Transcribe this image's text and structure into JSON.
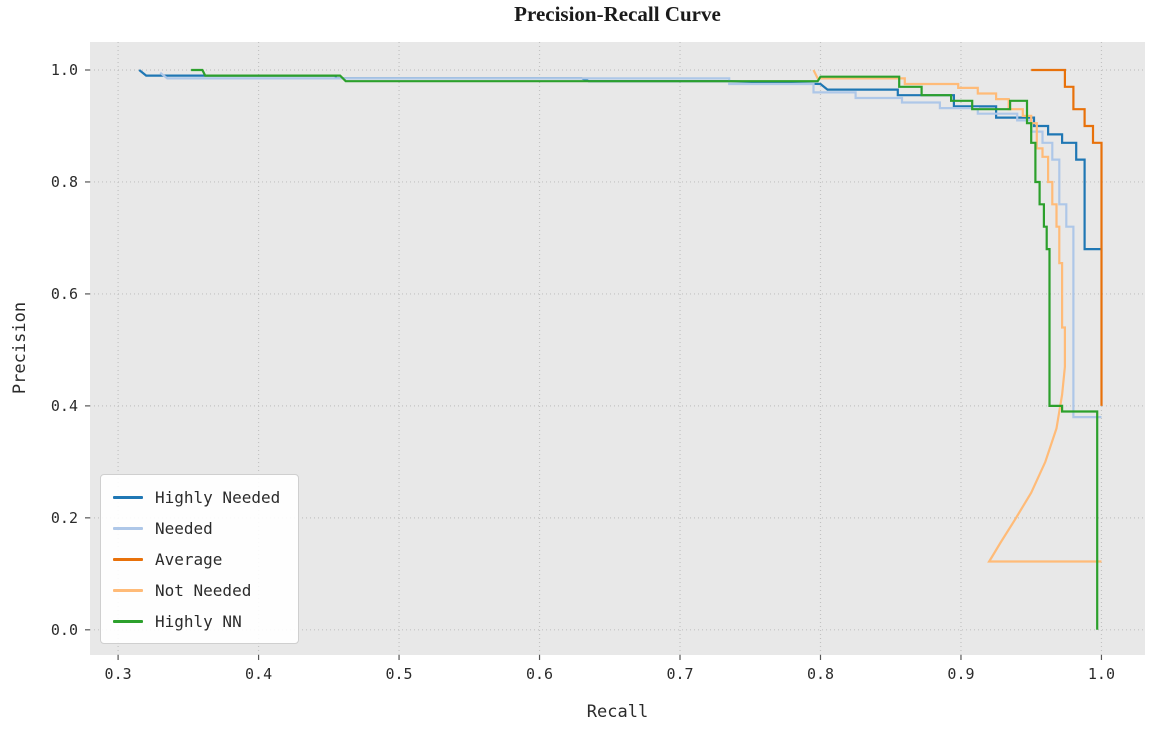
{
  "chart_data": {
    "type": "line",
    "subtype": "precision-recall-step-curves",
    "title": "Precision-Recall Curve",
    "xlabel": "Recall",
    "ylabel": "Precision",
    "xlim": [
      0.28,
      1.031
    ],
    "ylim": [
      -0.045,
      1.05
    ],
    "x_ticks": [
      0.3,
      0.4,
      0.5,
      0.6,
      0.7,
      0.8,
      0.9,
      1.0
    ],
    "y_ticks": [
      0.0,
      0.2,
      0.4,
      0.6,
      0.8,
      1.0
    ],
    "grid": "dotted",
    "plot_background": "#e8e8e8",
    "grid_color": "#c2c2c2",
    "legend_position": "lower left",
    "series": [
      {
        "name": "Highly Needed",
        "color": "#1f77b4",
        "points": [
          [
            0.315,
            1.0
          ],
          [
            0.32,
            0.99
          ],
          [
            0.455,
            0.99
          ],
          [
            0.455,
            0.985
          ],
          [
            0.63,
            0.985
          ],
          [
            0.635,
            0.98
          ],
          [
            0.735,
            0.98
          ],
          [
            0.8,
            0.975
          ],
          [
            0.805,
            0.965
          ],
          [
            0.855,
            0.965
          ],
          [
            0.855,
            0.955
          ],
          [
            0.895,
            0.955
          ],
          [
            0.895,
            0.935
          ],
          [
            0.925,
            0.935
          ],
          [
            0.925,
            0.915
          ],
          [
            0.952,
            0.915
          ],
          [
            0.952,
            0.9
          ],
          [
            0.962,
            0.9
          ],
          [
            0.962,
            0.885
          ],
          [
            0.972,
            0.885
          ],
          [
            0.972,
            0.87
          ],
          [
            0.982,
            0.87
          ],
          [
            0.982,
            0.84
          ],
          [
            0.988,
            0.84
          ],
          [
            0.988,
            0.68
          ],
          [
            1.0,
            0.68
          ]
        ]
      },
      {
        "name": "Needed",
        "color": "#aec7e8",
        "points": [
          [
            0.33,
            0.995
          ],
          [
            0.335,
            0.985
          ],
          [
            0.735,
            0.985
          ],
          [
            0.735,
            0.975
          ],
          [
            0.795,
            0.975
          ],
          [
            0.795,
            0.96
          ],
          [
            0.825,
            0.96
          ],
          [
            0.825,
            0.95
          ],
          [
            0.858,
            0.95
          ],
          [
            0.858,
            0.942
          ],
          [
            0.885,
            0.942
          ],
          [
            0.885,
            0.932
          ],
          [
            0.912,
            0.932
          ],
          [
            0.912,
            0.922
          ],
          [
            0.94,
            0.922
          ],
          [
            0.94,
            0.91
          ],
          [
            0.95,
            0.91
          ],
          [
            0.95,
            0.89
          ],
          [
            0.958,
            0.89
          ],
          [
            0.958,
            0.87
          ],
          [
            0.965,
            0.87
          ],
          [
            0.965,
            0.84
          ],
          [
            0.97,
            0.84
          ],
          [
            0.97,
            0.76
          ],
          [
            0.975,
            0.76
          ],
          [
            0.975,
            0.72
          ],
          [
            0.98,
            0.72
          ],
          [
            0.98,
            0.38
          ],
          [
            1.0,
            0.38
          ]
        ]
      },
      {
        "name": "Average",
        "color": "#e8710a",
        "points": [
          [
            0.95,
            1.0
          ],
          [
            0.974,
            1.0
          ],
          [
            0.974,
            0.97
          ],
          [
            0.98,
            0.97
          ],
          [
            0.98,
            0.93
          ],
          [
            0.988,
            0.93
          ],
          [
            0.988,
            0.9
          ],
          [
            0.994,
            0.9
          ],
          [
            0.994,
            0.87
          ],
          [
            1.0,
            0.87
          ],
          [
            1.0,
            0.4
          ]
        ]
      },
      {
        "name": "Not Needed",
        "color": "#ffbb78",
        "points": [
          [
            0.795,
            1.0
          ],
          [
            0.798,
            0.985
          ],
          [
            0.86,
            0.985
          ],
          [
            0.86,
            0.975
          ],
          [
            0.898,
            0.975
          ],
          [
            0.898,
            0.968
          ],
          [
            0.912,
            0.968
          ],
          [
            0.912,
            0.958
          ],
          [
            0.925,
            0.958
          ],
          [
            0.925,
            0.948
          ],
          [
            0.934,
            0.948
          ],
          [
            0.934,
            0.93
          ],
          [
            0.944,
            0.93
          ],
          [
            0.944,
            0.918
          ],
          [
            0.95,
            0.918
          ],
          [
            0.95,
            0.905
          ],
          [
            0.954,
            0.905
          ],
          [
            0.954,
            0.86
          ],
          [
            0.958,
            0.86
          ],
          [
            0.958,
            0.845
          ],
          [
            0.962,
            0.845
          ],
          [
            0.962,
            0.8
          ],
          [
            0.965,
            0.8
          ],
          [
            0.965,
            0.76
          ],
          [
            0.968,
            0.76
          ],
          [
            0.968,
            0.72
          ],
          [
            0.97,
            0.72
          ],
          [
            0.97,
            0.655
          ],
          [
            0.972,
            0.655
          ],
          [
            0.972,
            0.54
          ],
          [
            0.974,
            0.54
          ],
          [
            0.974,
            0.47
          ],
          [
            0.972,
            0.42
          ],
          [
            0.968,
            0.36
          ],
          [
            0.96,
            0.3
          ],
          [
            0.95,
            0.245
          ],
          [
            0.938,
            0.195
          ],
          [
            0.928,
            0.155
          ],
          [
            0.922,
            0.13
          ],
          [
            0.92,
            0.122
          ],
          [
            1.0,
            0.122
          ]
        ]
      },
      {
        "name": "Highly NN",
        "color": "#2ca02c",
        "points": [
          [
            0.352,
            1.0
          ],
          [
            0.36,
            1.0
          ],
          [
            0.362,
            0.99
          ],
          [
            0.458,
            0.99
          ],
          [
            0.462,
            0.98
          ],
          [
            0.798,
            0.98
          ],
          [
            0.8,
            0.988
          ],
          [
            0.856,
            0.988
          ],
          [
            0.856,
            0.97
          ],
          [
            0.872,
            0.97
          ],
          [
            0.872,
            0.955
          ],
          [
            0.893,
            0.955
          ],
          [
            0.893,
            0.945
          ],
          [
            0.908,
            0.945
          ],
          [
            0.908,
            0.93
          ],
          [
            0.935,
            0.93
          ],
          [
            0.935,
            0.945
          ],
          [
            0.947,
            0.945
          ],
          [
            0.947,
            0.905
          ],
          [
            0.95,
            0.905
          ],
          [
            0.95,
            0.87
          ],
          [
            0.953,
            0.87
          ],
          [
            0.953,
            0.8
          ],
          [
            0.956,
            0.8
          ],
          [
            0.956,
            0.76
          ],
          [
            0.959,
            0.76
          ],
          [
            0.959,
            0.72
          ],
          [
            0.961,
            0.72
          ],
          [
            0.961,
            0.68
          ],
          [
            0.963,
            0.68
          ],
          [
            0.963,
            0.4
          ],
          [
            0.972,
            0.4
          ],
          [
            0.972,
            0.39
          ],
          [
            0.997,
            0.39
          ],
          [
            0.997,
            0.0
          ]
        ]
      }
    ]
  }
}
